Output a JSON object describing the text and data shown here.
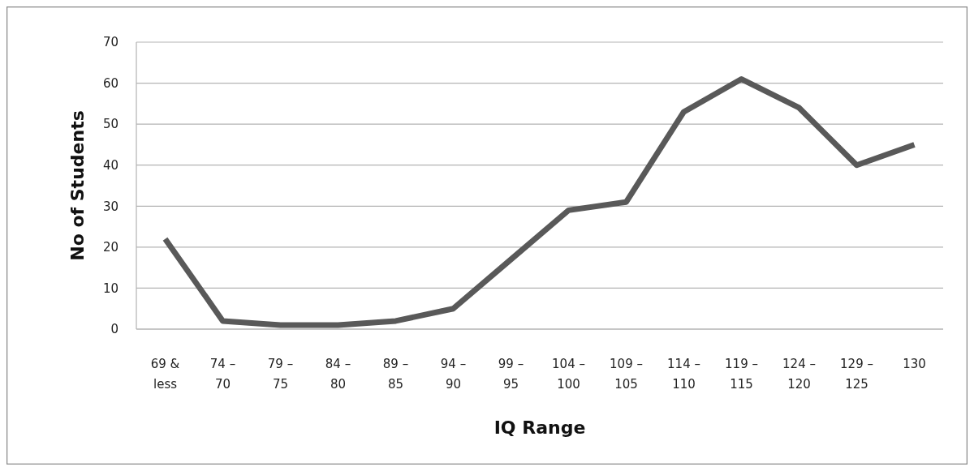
{
  "chart_data": {
    "type": "line",
    "xlabel": "IQ Range",
    "ylabel": "No of Students",
    "categories": [
      "69 &\nless",
      "74 –\n70",
      "79 –\n75",
      "84 –\n80",
      "89 –\n85",
      "94 –\n90",
      "99 –\n95",
      "104 –\n100",
      "109 –\n105",
      "114 –\n110",
      "119 –\n115",
      "124 –\n120",
      "129 –\n125",
      "130"
    ],
    "series": [
      {
        "color": "#595959",
        "values": [
          22,
          2,
          1,
          1,
          2,
          5,
          17,
          29,
          31,
          53,
          61,
          54,
          40,
          45
        ]
      }
    ],
    "ylim": [
      0,
      70
    ],
    "yticks": [
      0,
      10,
      20,
      30,
      40,
      50,
      60,
      70
    ],
    "grid": "y",
    "marker": "none",
    "line_style": "solid"
  }
}
